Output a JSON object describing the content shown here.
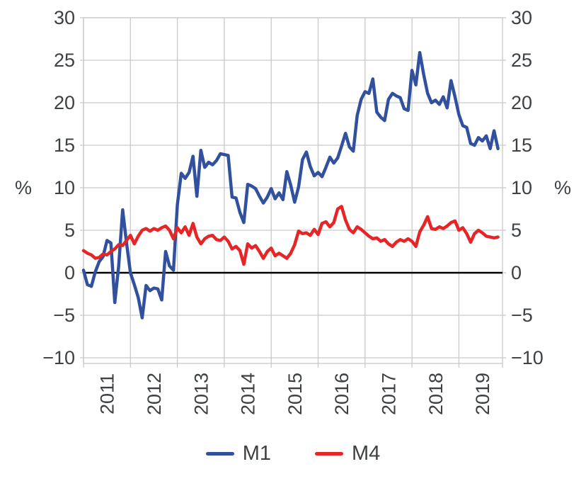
{
  "page": {
    "background": "#ffffff"
  },
  "chart_data": {
    "type": "line",
    "title": "",
    "frequency": "monthly",
    "x_start": "2011-01",
    "x_end": "2019-11",
    "x_tick_labels": [
      "2011",
      "2012",
      "2013",
      "2014",
      "2015",
      "2016",
      "2017",
      "2018",
      "2019"
    ],
    "y_axis": {
      "range": [
        -10.7,
        30
      ],
      "ticks": [
        {
          "v": 30,
          "label": "30"
        },
        {
          "v": 25,
          "label": "25"
        },
        {
          "v": 20,
          "label": "20"
        },
        {
          "v": 15,
          "label": "15"
        },
        {
          "v": 10,
          "label": "10"
        },
        {
          "v": 5,
          "label": "5"
        },
        {
          "v": 0,
          "label": "0"
        },
        {
          "v": -5,
          "label": "−5"
        },
        {
          "v": -10,
          "label": "−10"
        }
      ],
      "unit_label_left": "%",
      "unit_label_right": "%"
    },
    "grid": true,
    "zero_line": {
      "show": true,
      "color": "#000000"
    },
    "colors": {
      "grid": "#c9c9c9",
      "border": "#c9c9c9",
      "axis_text": "#3d4144"
    },
    "legend": {
      "position": "bottom"
    },
    "series": [
      {
        "name": "M1",
        "color": "#31519f",
        "values": [
          0.3,
          -1.4,
          -1.6,
          0.1,
          1.3,
          1.9,
          3.8,
          3.5,
          -3.5,
          0.8,
          7.4,
          3.5,
          0.0,
          -1.4,
          -2.9,
          -5.3,
          -1.5,
          -2.1,
          -1.8,
          -1.9,
          -3.2,
          2.5,
          0.8,
          0.3,
          8.0,
          11.7,
          11.1,
          11.8,
          13.7,
          9.0,
          14.4,
          12.4,
          13.0,
          12.7,
          13.2,
          14.0,
          13.9,
          13.8,
          8.9,
          8.8,
          7.1,
          5.9,
          10.4,
          10.2,
          9.9,
          9.0,
          8.2,
          8.9,
          9.9,
          8.7,
          9.4,
          8.6,
          11.9,
          10.3,
          8.3,
          10.1,
          13.3,
          14.2,
          12.5,
          11.4,
          11.8,
          11.3,
          12.4,
          13.6,
          12.9,
          13.5,
          14.9,
          16.4,
          14.8,
          14.3,
          18.5,
          20.4,
          21.3,
          21.1,
          22.8,
          18.9,
          18.3,
          17.9,
          20.4,
          21.1,
          20.8,
          20.6,
          19.3,
          19.1,
          23.8,
          22.1,
          25.9,
          23.3,
          21.1,
          20.0,
          20.3,
          19.8,
          20.7,
          19.4,
          22.6,
          20.7,
          18.6,
          17.3,
          17.1,
          15.2,
          15.0,
          15.9,
          15.5,
          16.1,
          14.6,
          16.7,
          14.6
        ]
      },
      {
        "name": "M4",
        "color": "#e62527",
        "values": [
          2.6,
          2.3,
          2.1,
          1.7,
          1.8,
          2.2,
          2.1,
          2.5,
          2.8,
          3.3,
          3.2,
          3.8,
          4.4,
          3.4,
          4.3,
          5.0,
          5.2,
          4.9,
          5.2,
          5.0,
          5.3,
          5.5,
          5.0,
          4.0,
          5.3,
          4.7,
          5.4,
          4.4,
          5.8,
          4.2,
          3.4,
          4.0,
          4.3,
          4.4,
          3.9,
          3.8,
          4.2,
          3.7,
          2.8,
          3.1,
          2.6,
          1.0,
          3.4,
          2.9,
          3.2,
          2.5,
          1.7,
          2.5,
          2.9,
          2.0,
          2.3,
          2.0,
          1.7,
          2.3,
          3.3,
          4.9,
          4.6,
          4.7,
          4.4,
          5.1,
          4.5,
          5.8,
          6.0,
          5.4,
          5.9,
          7.5,
          7.8,
          6.2,
          5.1,
          4.7,
          5.4,
          5.1,
          4.7,
          4.3,
          4.0,
          4.1,
          3.7,
          3.9,
          3.4,
          3.1,
          3.6,
          3.9,
          3.7,
          4.0,
          3.7,
          3.1,
          4.8,
          5.6,
          6.6,
          5.2,
          5.1,
          5.4,
          5.2,
          5.5,
          5.9,
          6.1,
          5.0,
          5.3,
          4.6,
          3.6,
          4.6,
          5.0,
          4.7,
          4.3,
          4.2,
          4.1,
          4.2
        ]
      }
    ]
  }
}
